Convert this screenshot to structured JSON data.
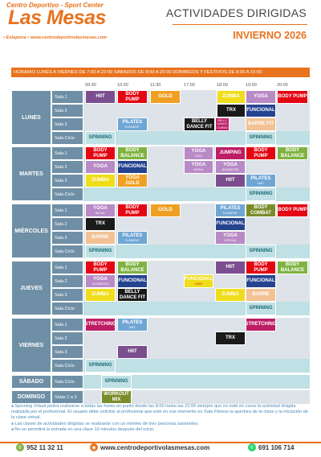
{
  "header": {
    "logo_top": "Centro Deportivo - Sport Center",
    "logo_main": "Las Mesas",
    "logo_bottom_town": "• Estepona •",
    "logo_bottom_url": "www.centrodeportivolasmesas.com",
    "title": "ACTIVIDADES DIRIGIDAS",
    "subtitle": "INVIERNO 2026"
  },
  "horario": "HORARIO   LUNES A VIERNES DE 7:00 A 23:00   SÁBADOS DE 8:00 A 20:00   DOMINGOS Y FESTIVOS DE 8:00 A 15:00",
  "times": [
    "09:30",
    "10:30",
    "11:30",
    "17:00",
    "18:00",
    "19:00",
    "20:00"
  ],
  "days": [
    "LUNES",
    "MARTES",
    "MIÉRCOLES",
    "JUEVES",
    "VIERNES",
    "SÁBADO",
    "DOMINGO"
  ],
  "salas": {
    "s1": "Sala 1",
    "s2": "Sala 2",
    "s3": "Sala 3",
    "ciclo": "Sala Ciclo",
    "dom": "Salas 1 a 3"
  },
  "classes": {
    "hiit": "HIIT",
    "bodypump": "BODY PUMP",
    "gold": "GOLD",
    "zumba": "ZUMBA",
    "yoga": "YOGA",
    "trx": "TRX",
    "funcional": "FUNCIONAL",
    "pilates": "PILATES",
    "element": "ELEMENT",
    "belly": "BELLY DANCE FIT",
    "belly_s1": "BELLY",
    "belly_s2": "DANCE",
    "belly_s3": "COREO",
    "barre": "BARRE",
    "barrefit": "BARRE FIT",
    "spinning": "SPINNING",
    "bodybalance": "BODY BALANCE",
    "yoga_kids": "YOGA",
    "kids": "KIDS",
    "jumping": "JUMPING",
    "initial": "INITIAL",
    "advanced": "ADVANCED",
    "yogagold": "YOGA GOLD",
    "mat": "MAT",
    "bodycombat": "BODY COMBAT",
    "virtual": "VIRTUAL",
    "stretching": "STRETCHING",
    "workout": "WORKOUT MIX",
    "funcional_kids": "FUNCIONAL"
  },
  "notes": [
    "Spinning Virtual podrá realizarse a todas las horas en punto desde las 8:00 hasta las 22:00 siempre que no esté en curso la actividad dirigida realizada por el profesional. El usuario debe solicitar al profesional que esté en ese momento en Sala Fitness la apertura de la clase y la iniciación de la clase virtual.",
    "Las clases de actividades dirigidas se realizarán con un mínimo de tres personas asistentes.",
    "No se permitirá la entrada en una clase 10 minutos después del inicio."
  ],
  "footer": {
    "phone1": "952 11 32 11",
    "web": "www.centrodeportivolasmesas.com",
    "phone2": "691 106 714",
    "phone_icon": "phone-icon",
    "web_icon": "globe-icon",
    "whatsapp_icon": "whatsapp-icon"
  },
  "colors": {
    "brand_orange": "#e8731f",
    "day_blue": "#6f8fa6"
  }
}
